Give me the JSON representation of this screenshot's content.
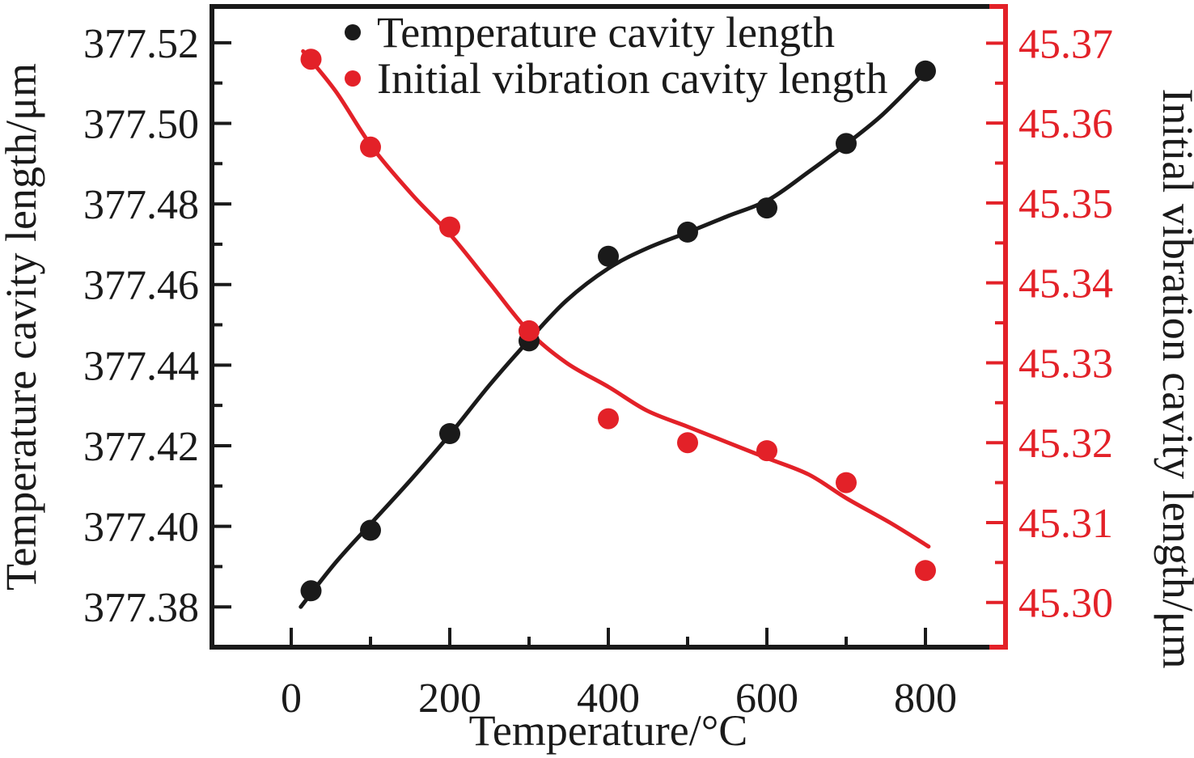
{
  "chart_data": {
    "type": "scatter",
    "title": "",
    "xlabel": "Temperature/°C",
    "ylabel_left": "Temperature cavity length/μm",
    "ylabel_right": "Initial vibration cavity length/μm",
    "xlim": [
      -100,
      901
    ],
    "x_ticks": [
      0,
      200,
      400,
      600,
      800
    ],
    "x_minor_ticks": [
      100,
      300,
      500,
      700
    ],
    "ylim_left": [
      377.37,
      377.529
    ],
    "y_ticks_left": [
      377.38,
      377.4,
      377.42,
      377.44,
      377.46,
      377.48,
      377.5,
      377.52
    ],
    "y_minor_ticks_left": [
      377.39,
      377.41,
      377.43,
      377.45,
      377.47,
      377.49,
      377.51
    ],
    "ylim_right": [
      45.2944,
      45.3746
    ],
    "y_ticks_right": [
      45.3,
      45.31,
      45.32,
      45.33,
      45.34,
      45.35,
      45.36,
      45.37
    ],
    "y_minor_ticks_right": [
      45.305,
      45.315,
      45.325,
      45.335,
      45.345,
      45.355,
      45.365,
      45.37499
    ],
    "grid": false,
    "legend_position": "top-inside",
    "colors": {
      "black_series": "#1a1a1a",
      "red_series": "#e32128",
      "frame": "#1a1a1a"
    },
    "series": [
      {
        "name": "Temperature cavity length",
        "axis": "left",
        "color": "#1a1a1a",
        "marker": "circle",
        "x": [
          25,
          100,
          200,
          300,
          400,
          500,
          600,
          700,
          800
        ],
        "y": [
          377.384,
          377.399,
          377.423,
          377.446,
          377.467,
          377.473,
          377.479,
          377.495,
          377.513
        ],
        "fit_line": {
          "x": [
            12,
            56,
            102,
            153,
            201,
            250,
            299,
            347,
            400,
            449,
            501,
            551,
            602,
            653,
            701,
            745,
            791
          ],
          "y": [
            377.38,
            377.391,
            377.401,
            377.412,
            377.423,
            377.435,
            377.446,
            377.456,
            377.464,
            377.469,
            377.473,
            377.477,
            377.481,
            377.488,
            377.495,
            377.502,
            377.511
          ]
        }
      },
      {
        "name": "Initial vibration cavity length",
        "axis": "right",
        "color": "#e32128",
        "marker": "circle",
        "x": [
          25,
          100,
          200,
          300,
          400,
          500,
          600,
          700,
          800
        ],
        "y": [
          45.368,
          45.357,
          45.347,
          45.334,
          45.323,
          45.32,
          45.319,
          45.315,
          45.304
        ],
        "fit_line": {
          "x": [
            15,
            56,
            102,
            153,
            201,
            250,
            299,
            347,
            400,
            449,
            500,
            551,
            602,
            653,
            701,
            755,
            804
          ],
          "y": [
            45.369,
            45.364,
            45.357,
            45.351,
            45.346,
            45.34,
            45.334,
            45.33,
            45.327,
            45.324,
            45.322,
            45.32,
            45.318,
            45.316,
            45.313,
            45.31,
            45.307
          ]
        }
      }
    ]
  }
}
